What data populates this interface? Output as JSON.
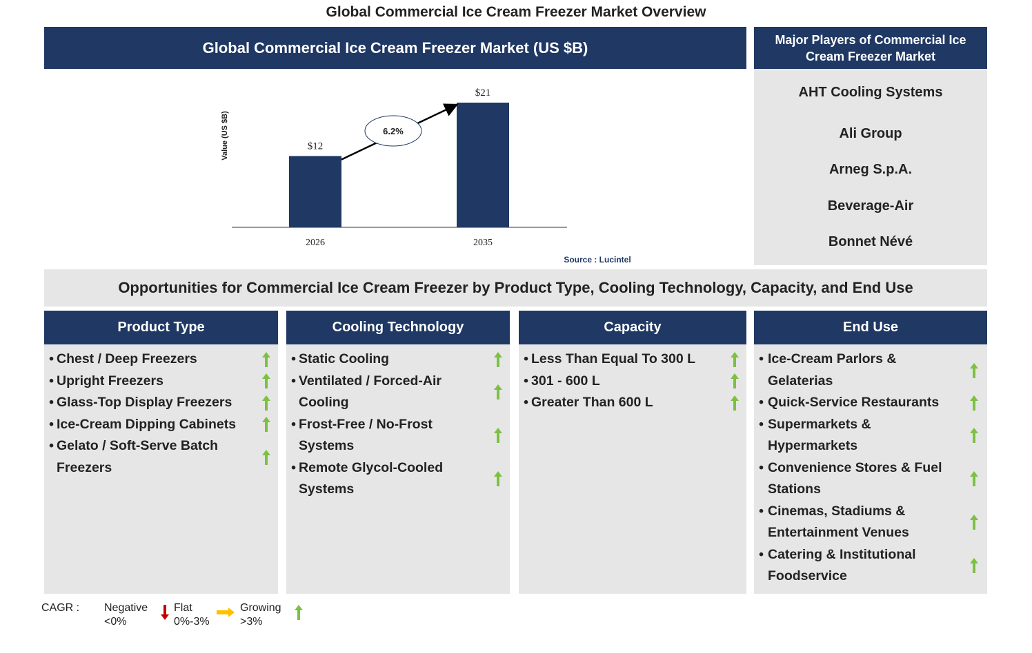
{
  "title": "Global Commercial Ice Cream Freezer Market Overview",
  "chart_data": {
    "type": "bar",
    "title": "Global Commercial Ice Cream Freezer Market (US $B)",
    "y_label": "Value (US $B)",
    "categories": [
      "2026",
      "2035"
    ],
    "values": [
      12,
      21
    ],
    "value_labels": [
      "$12",
      "$21"
    ],
    "color": "#1f3864",
    "ylim": [
      0,
      21
    ],
    "cagr_label": "6.2%",
    "source": "Source : Lucintel"
  },
  "players": {
    "title": "Major Players of Commercial Ice Cream Freezer Market",
    "items": [
      "AHT Cooling Systems",
      "Ali Group",
      "Arneg S.p.A.",
      "Beverage-Air",
      "Bonnet Névé"
    ]
  },
  "opportunities": {
    "title": "Opportunities for Commercial Ice Cream Freezer by Product Type, Cooling Technology, Capacity, and End Use",
    "segments": [
      {
        "name": "Product Type",
        "items": [
          "Chest / Deep Freezers",
          "Upright Freezers",
          "Glass-Top Display Freezers",
          "Ice-Cream Dipping Cabinets",
          "Gelato / Soft-Serve Batch Freezers"
        ]
      },
      {
        "name": "Cooling Technology",
        "items": [
          "Static Cooling",
          "Ventilated / Forced-Air Cooling",
          "Frost-Free / No-Frost Systems",
          "Remote Glycol-Cooled Systems"
        ]
      },
      {
        "name": "Capacity",
        "items": [
          "Less Than Equal To 300 L",
          "301 - 600 L",
          "Greater Than 600 L"
        ]
      },
      {
        "name": "End Use",
        "items": [
          "Ice-Cream Parlors & Gelaterias",
          "Quick-Service Restaurants",
          "Supermarkets & Hypermarkets",
          "Convenience Stores & Fuel Stations",
          "Cinemas, Stadiums & Entertainment Venues",
          "Catering & Institutional Foodservice"
        ]
      }
    ]
  },
  "legend": {
    "label": "CAGR :",
    "items": [
      {
        "name": "Negative",
        "range": "<0%"
      },
      {
        "name": "Flat",
        "range": "0%-3%"
      },
      {
        "name": "Growing",
        "range": ">3%"
      }
    ]
  }
}
